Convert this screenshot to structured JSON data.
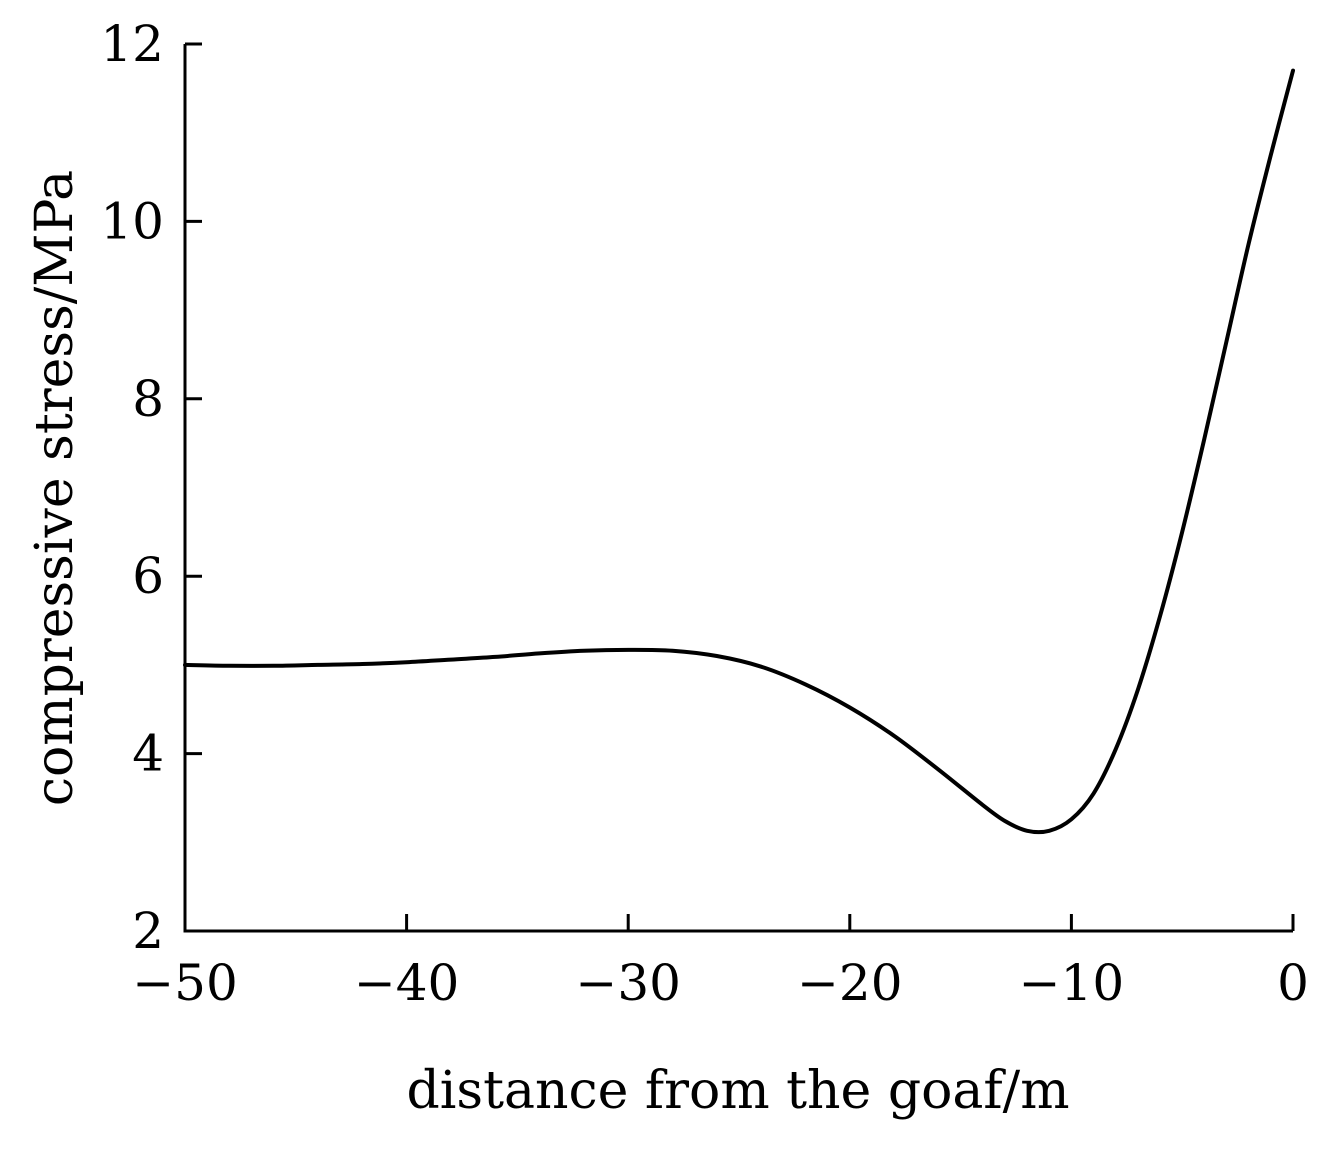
{
  "chart_data": {
    "type": "line",
    "title": "",
    "xlabel": "distance from the goaf/m",
    "ylabel": "compressive stress/MPa",
    "xlim": [
      -50,
      0
    ],
    "ylim": [
      2,
      12
    ],
    "x_ticks": [
      -50,
      -40,
      -30,
      -20,
      -10,
      0
    ],
    "y_ticks": [
      2,
      4,
      6,
      8,
      10,
      12
    ],
    "x_tick_labels": [
      "−50",
      "−40",
      "−30",
      "−20",
      "−10",
      "0"
    ],
    "y_tick_labels": [
      "2",
      "4",
      "6",
      "8",
      "10",
      "12"
    ],
    "grid": false,
    "series": [
      {
        "color": "#000000",
        "x": [
          -50,
          -48,
          -46,
          -44,
          -42,
          -40,
          -38,
          -36,
          -34,
          -32,
          -30,
          -28,
          -26,
          -24,
          -22,
          -20,
          -18,
          -16,
          -14,
          -13,
          -12,
          -11,
          -10,
          -9,
          -8,
          -7,
          -6,
          -5,
          -4,
          -3,
          -2,
          -1,
          0
        ],
        "y": [
          5.0,
          4.99,
          4.99,
          5.0,
          5.01,
          5.03,
          5.06,
          5.09,
          5.13,
          5.16,
          5.17,
          5.16,
          5.1,
          4.98,
          4.78,
          4.52,
          4.2,
          3.82,
          3.42,
          3.24,
          3.13,
          3.13,
          3.26,
          3.55,
          4.05,
          4.72,
          5.55,
          6.5,
          7.55,
          8.65,
          9.75,
          10.75,
          11.7
        ]
      }
    ]
  }
}
